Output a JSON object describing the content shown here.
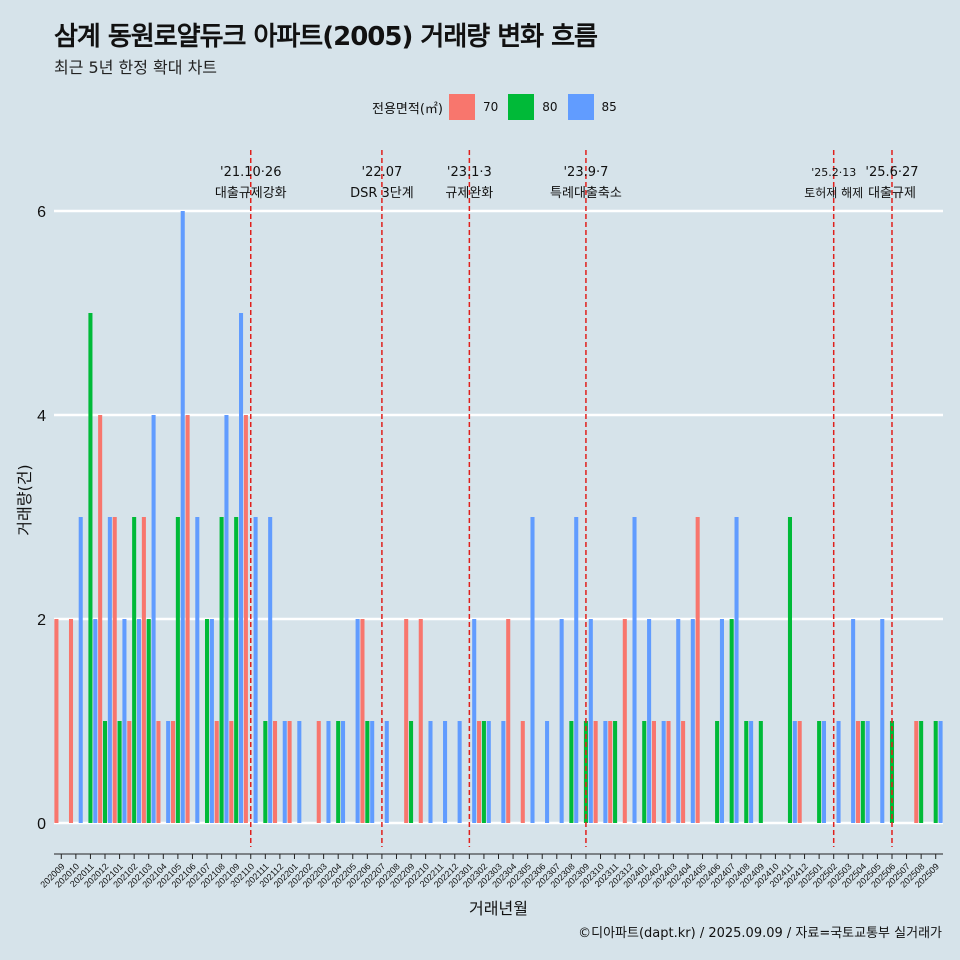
{
  "title": "삼계 동원로얄듀크 아파트(2005) 거래량 변화 흐름",
  "subtitle": "최근 5년 한정 확대 차트",
  "caption": "©디아파트(dapt.kr) / 2025.09.09 / 자료=국토교통부 실거래가",
  "legend": {
    "title": "전용면적(㎡)",
    "items": [
      {
        "label": "70",
        "color": "#F8766D"
      },
      {
        "label": "80",
        "color": "#00BA38"
      },
      {
        "label": "85",
        "color": "#619CFF"
      }
    ]
  },
  "colors": {
    "background": "#d6e3ea",
    "grid": "#ffffff",
    "event_line": "#e0201c"
  },
  "chart_data": {
    "type": "bar",
    "xlabel": "거래년월",
    "ylabel": "거래량(건)",
    "ylim": [
      0,
      6
    ],
    "yticks": [
      0,
      2,
      4,
      6
    ],
    "grid": true,
    "legend_position": "top",
    "categories": [
      "202009",
      "202010",
      "202011",
      "202012",
      "202101",
      "202102",
      "202103",
      "202104",
      "202105",
      "202106",
      "202107",
      "202108",
      "202109",
      "202110",
      "202111",
      "202112",
      "202201",
      "202202",
      "202203",
      "202204",
      "202205",
      "202206",
      "202207",
      "202208",
      "202209",
      "202210",
      "202211",
      "202212",
      "202301",
      "202302",
      "202303",
      "202304",
      "202305",
      "202306",
      "202307",
      "202308",
      "202309",
      "202310",
      "202311",
      "202312",
      "202401",
      "202402",
      "202403",
      "202404",
      "202405",
      "202406",
      "202407",
      "202408",
      "202409",
      "202410",
      "202411",
      "202412",
      "202501",
      "202502",
      "202503",
      "202504",
      "202505",
      "202506",
      "202507",
      "202508",
      "202509"
    ],
    "series": [
      {
        "name": "70",
        "values": [
          2,
          2,
          0,
          4,
          3,
          1,
          3,
          1,
          1,
          4,
          0,
          1,
          1,
          4,
          0,
          1,
          1,
          0,
          1,
          0,
          0,
          2,
          0,
          0,
          2,
          2,
          0,
          0,
          0,
          1,
          0,
          2,
          1,
          0,
          0,
          0,
          0,
          1,
          1,
          2,
          0,
          1,
          1,
          1,
          3,
          0,
          0,
          0,
          0,
          0,
          0,
          1,
          0,
          0,
          0,
          1,
          0,
          0,
          0,
          1,
          0
        ]
      },
      {
        "name": "80",
        "values": [
          0,
          0,
          5,
          1,
          1,
          3,
          2,
          0,
          3,
          0,
          2,
          3,
          3,
          0,
          1,
          0,
          0,
          0,
          0,
          1,
          0,
          1,
          0,
          0,
          1,
          0,
          0,
          0,
          0,
          1,
          0,
          0,
          0,
          0,
          0,
          1,
          1,
          0,
          1,
          0,
          1,
          0,
          0,
          0,
          0,
          1,
          2,
          1,
          1,
          0,
          3,
          0,
          1,
          0,
          0,
          1,
          0,
          1,
          0,
          1,
          1
        ]
      },
      {
        "name": "85",
        "values": [
          0,
          3,
          2,
          3,
          2,
          2,
          4,
          1,
          6,
          3,
          2,
          4,
          5,
          3,
          3,
          1,
          1,
          0,
          1,
          1,
          2,
          1,
          1,
          0,
          0,
          1,
          1,
          1,
          2,
          1,
          1,
          0,
          3,
          1,
          2,
          3,
          2,
          1,
          0,
          3,
          2,
          1,
          2,
          2,
          0,
          2,
          3,
          1,
          0,
          0,
          1,
          0,
          1,
          1,
          2,
          1,
          2,
          0,
          0,
          0,
          1
        ]
      }
    ],
    "events": [
      {
        "date": "'21.10·26",
        "label": "대출규제강화",
        "month": "202110"
      },
      {
        "date": "'22.07",
        "label": "DSR 3단계",
        "month": "202207"
      },
      {
        "date": "'23.1·3",
        "label": "규제완화",
        "month": "202301"
      },
      {
        "date": "'23.9·7",
        "label": "특례대출축소",
        "month": "202309"
      },
      {
        "date": "'25.2·13",
        "label": "토허제 해제",
        "month": "202502"
      },
      {
        "date": "'25.6·27",
        "label": "대출규제",
        "month": "202506"
      }
    ]
  }
}
